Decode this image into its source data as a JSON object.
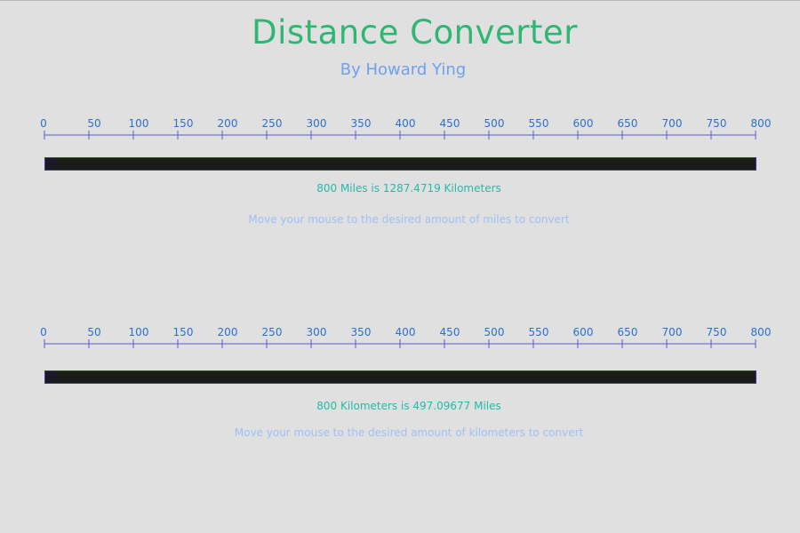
{
  "header": {
    "title": "Distance Converter",
    "subtitle": "By Howard Ying"
  },
  "ruler_ticks": [
    "0",
    "50",
    "100",
    "150",
    "200",
    "250",
    "300",
    "350",
    "400",
    "450",
    "500",
    "550",
    "600",
    "650",
    "700",
    "750",
    "800"
  ],
  "miles_converter": {
    "value": 800,
    "max": 800,
    "result_text": "800 Miles is 1287.4719 Kilometers",
    "hint": "Move your mouse to the desired amount of miles to convert"
  },
  "km_converter": {
    "value": 800,
    "max": 800,
    "result_text": "800 Kilometers is 497.09677 Miles",
    "hint": "Move your mouse to the desired amount of kilometers to convert"
  },
  "colors": {
    "title": "#2eb673",
    "subtitle": "#6f9ff0",
    "tick": "#2c6fcf",
    "ruler_line": "#5a5ad0",
    "bar_fill": "#1b1b1b",
    "result": "#22bba8",
    "hint": "#9fc0f5"
  }
}
